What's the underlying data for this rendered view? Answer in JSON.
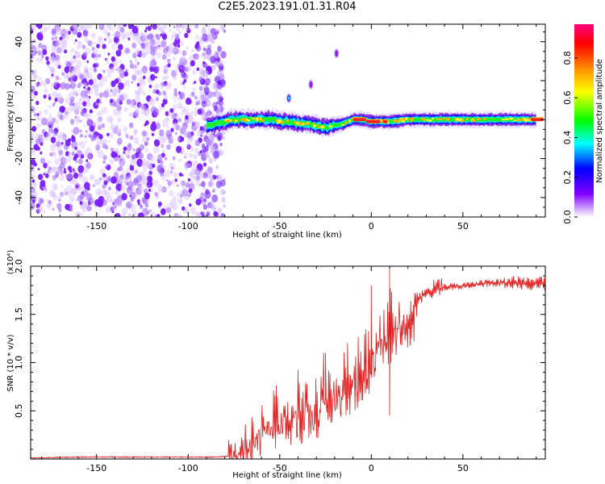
{
  "figure": {
    "title": "C2E5.2023.191.01.31.R04"
  },
  "chart_data": [
    {
      "type": "heatmap",
      "xlabel": "Height of straight line (km)",
      "ylabel": "Frequency (Hz)",
      "xlim": [
        -186,
        95
      ],
      "ylim": [
        -50,
        49
      ],
      "xticks": [
        -150,
        -100,
        -50,
        0,
        50
      ],
      "yticks": [
        -40,
        -20,
        0,
        20,
        40
      ],
      "colorbar": {
        "label": "Normalized spectral amplitude",
        "range": [
          0.0,
          0.97
        ],
        "ticks": [
          0.0,
          0.2,
          0.4,
          0.6,
          0.8
        ],
        "colormap": [
          "#ff0080",
          "#ff0000",
          "#ffa000",
          "#ffff00",
          "#00ff00",
          "#00ffff",
          "#0000ff",
          "#8000ff",
          "#ffffff"
        ]
      },
      "noise_region": {
        "x_range": [
          -186,
          -80
        ],
        "y_range": [
          -50,
          49
        ]
      },
      "signal_ridge": {
        "x": [
          -90,
          -85,
          -80,
          -75,
          -70,
          -65,
          -60,
          -55,
          -50,
          -45,
          -40,
          -35,
          -30,
          -25,
          -20,
          -15,
          -10,
          -5,
          0,
          10,
          20,
          30,
          40,
          50,
          60,
          70,
          80,
          90
        ],
        "y": [
          -3,
          -2,
          -1,
          0,
          0,
          0,
          0,
          0,
          -1,
          -1,
          -2,
          -2,
          -3,
          -4,
          -3,
          -2,
          0,
          0,
          -1,
          -1,
          0,
          0,
          0,
          0,
          0,
          0,
          0,
          0
        ]
      },
      "peak_segments": [
        {
          "x_range": [
            -10,
            -3
          ],
          "y": 0
        },
        {
          "x_range": [
            -3,
            5
          ],
          "y": -1
        },
        {
          "x_range": [
            6,
            9
          ],
          "y": -1
        },
        {
          "x_range": [
            87,
            94
          ],
          "y": 0
        }
      ],
      "isolated_blobs": [
        {
          "x": -45,
          "y": 11
        },
        {
          "x": -33,
          "y": 18
        },
        {
          "x": -19,
          "y": 34
        }
      ]
    },
    {
      "type": "line",
      "xlabel": "Height of straight line (km)",
      "ylabel": "SNR (10 * v/v)",
      "yscale_label": "(x10⁴)",
      "xlim": [
        -186,
        95
      ],
      "ylim": [
        0,
        2.0
      ],
      "xticks": [
        -150,
        -100,
        -50,
        0,
        50
      ],
      "yticks": [
        0.5,
        1.0,
        1.5,
        2.0
      ],
      "ytick_labels": [
        "0.5",
        "1.0",
        "1.5",
        "2.0"
      ],
      "color": "#e02020",
      "series": [
        {
          "x": [
            -186,
            -160,
            -130,
            -100,
            -85,
            -78,
            -72,
            -68,
            -65,
            -60,
            -55,
            -50,
            -45,
            -40,
            -35,
            -30,
            -25,
            -20,
            -15,
            -10,
            -5,
            0,
            5,
            10,
            15,
            20,
            25,
            30,
            35,
            40,
            50,
            60,
            70,
            80,
            90,
            95
          ],
          "y": [
            0.01,
            0.02,
            0.02,
            0.02,
            0.02,
            0.03,
            0.1,
            0.2,
            0.25,
            0.35,
            0.4,
            0.45,
            0.48,
            0.55,
            0.58,
            0.6,
            0.7,
            0.75,
            0.8,
            0.85,
            1.0,
            1.1,
            1.3,
            1.4,
            1.45,
            1.55,
            1.65,
            1.72,
            1.75,
            1.78,
            1.8,
            1.82,
            1.83,
            1.83,
            1.82,
            1.82
          ]
        }
      ],
      "spikes": [
        {
          "x": 10,
          "y": 2.0
        },
        {
          "x": 10,
          "y": 0.45
        },
        {
          "x": 0,
          "y": 1.8
        },
        {
          "x": -13,
          "y": 1.2
        },
        {
          "x": -25,
          "y": 1.1
        }
      ]
    }
  ]
}
